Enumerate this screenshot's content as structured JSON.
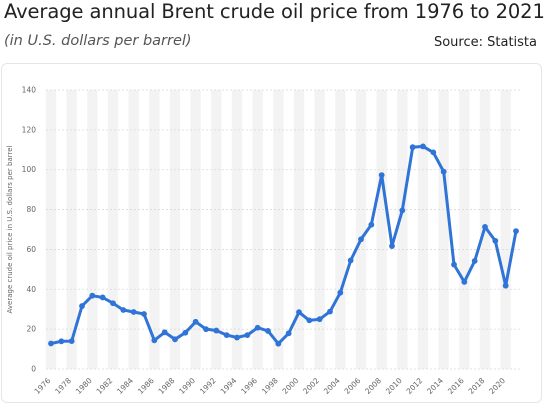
{
  "header": {
    "title": "Average annual Brent crude oil price from 1976 to 2021",
    "subtitle": "(in U.S. dollars per barrel)",
    "source": "Source: Statista"
  },
  "colors": {
    "line": "#2f74d6",
    "band": "#f3f3f3",
    "grid": "#d9d9d9"
  },
  "chart_data": {
    "type": "line",
    "title": "Average annual Brent crude oil price from 1976 to 2021",
    "ylabel": "Average crude oil price in U.S. dollars per barrel",
    "xlabel": "",
    "ylim": [
      0,
      140
    ],
    "yticks": [
      0,
      20,
      40,
      60,
      80,
      100,
      120,
      140
    ],
    "xtick_labels": [
      "1976",
      "1978",
      "1980",
      "1982",
      "1984",
      "1986",
      "1988",
      "1990",
      "1992",
      "1994",
      "1996",
      "1998",
      "2000",
      "2002",
      "2004",
      "2006",
      "2008",
      "2010",
      "2012",
      "2014",
      "2016",
      "2018",
      "2020"
    ],
    "grid": "horizontal dashed",
    "x": [
      1976,
      1977,
      1978,
      1979,
      1980,
      1981,
      1982,
      1983,
      1984,
      1985,
      1986,
      1987,
      1988,
      1989,
      1990,
      1991,
      1992,
      1993,
      1994,
      1995,
      1996,
      1997,
      1998,
      1999,
      2000,
      2001,
      2002,
      2003,
      2004,
      2005,
      2006,
      2007,
      2008,
      2009,
      2010,
      2011,
      2012,
      2013,
      2014,
      2015,
      2016,
      2017,
      2018,
      2019,
      2020,
      2021
    ],
    "values": [
      12.8,
      13.9,
      14.0,
      31.6,
      36.8,
      35.9,
      33.0,
      29.6,
      28.6,
      27.6,
      14.4,
      18.4,
      14.9,
      18.2,
      23.7,
      20.0,
      19.3,
      17.0,
      15.8,
      17.0,
      20.7,
      19.1,
      12.7,
      17.9,
      28.5,
      24.4,
      25.0,
      28.8,
      38.3,
      54.5,
      65.1,
      72.4,
      97.3,
      61.7,
      79.6,
      111.3,
      111.7,
      108.7,
      99.0,
      52.4,
      43.7,
      54.2,
      71.3,
      64.3,
      41.8,
      69.2
    ]
  }
}
